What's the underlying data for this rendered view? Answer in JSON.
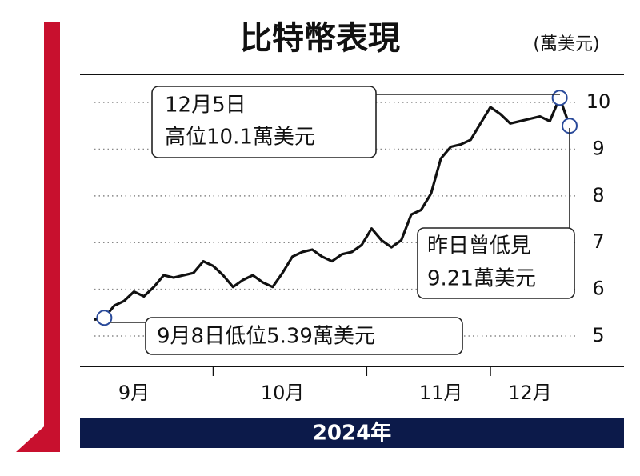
{
  "chart_data": {
    "type": "line",
    "title": "比特幣表現",
    "unit": "(萬美元)",
    "footer": "2024年",
    "categories": [
      null,
      null,
      null,
      null,
      "9月",
      null,
      null,
      null,
      null,
      null,
      null,
      null,
      null,
      null,
      null,
      null,
      null,
      null,
      null,
      "10月",
      null,
      null,
      null,
      null,
      null,
      null,
      null,
      null,
      null,
      null,
      null,
      null,
      null,
      null,
      null,
      "11月",
      null,
      null,
      null,
      null,
      null,
      null,
      null,
      null,
      "12月",
      null,
      null,
      null,
      null
    ],
    "series": [
      {
        "name": "比特幣",
        "color": "#111111",
        "values": [
          5.35,
          5.39,
          5.65,
          5.75,
          5.95,
          5.85,
          6.05,
          6.3,
          6.25,
          6.3,
          6.35,
          6.6,
          6.5,
          6.3,
          6.05,
          6.2,
          6.3,
          6.15,
          6.05,
          6.35,
          6.7,
          6.8,
          6.85,
          6.7,
          6.6,
          6.75,
          6.8,
          6.95,
          7.3,
          7.05,
          6.9,
          7.05,
          7.6,
          7.7,
          8.05,
          8.8,
          9.05,
          9.1,
          9.2,
          9.55,
          9.9,
          9.75,
          9.55,
          9.6,
          9.65,
          9.7,
          9.6,
          10.1,
          9.5
        ]
      }
    ],
    "ylim": [
      4.35,
      10.6
    ],
    "yticks": [
      5,
      6,
      7,
      8,
      9,
      10
    ],
    "grid": true,
    "annotations": [
      [
        "12月5日",
        "高位10.1萬美元"
      ],
      [
        "昨日曾低見",
        "9.21萬美元"
      ],
      [
        "9月8日低位5.39萬美元"
      ]
    ]
  }
}
